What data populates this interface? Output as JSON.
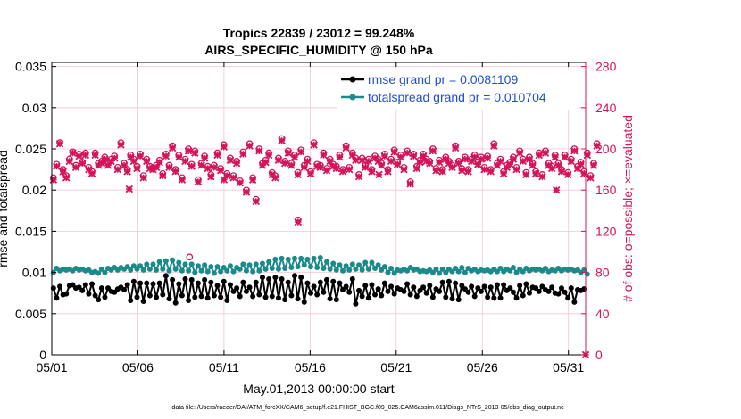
{
  "chart_data": {
    "type": "line",
    "title_line1": "Tropics 22839 / 23012 = 99.248%",
    "title_line2": "AIRS_SPECIFIC_HUMIDITY @ 150 hPa",
    "xlabel": "May.01,2013 00:00:00 start",
    "ylabel_left": "rmse and totalspread",
    "ylabel_right": "# of obs: o=possible; ×=evaluated",
    "ylim_left": [
      0,
      0.0355
    ],
    "ylim_right": [
      0,
      284
    ],
    "xlim": [
      0,
      31
    ],
    "x_ticks": [
      0,
      5,
      10,
      15,
      20,
      25,
      30
    ],
    "x_tick_labels": [
      "05/01",
      "05/06",
      "05/11",
      "05/16",
      "05/21",
      "05/26",
      "05/31"
    ],
    "y_ticks_left": [
      0,
      0.005,
      0.01,
      0.015,
      0.02,
      0.025,
      0.03,
      0.035
    ],
    "y_tick_labels_left": [
      "0",
      "0.005",
      "0.01",
      "0.015",
      "0.02",
      "0.025",
      "0.03",
      "0.035"
    ],
    "y_ticks_right": [
      0,
      40,
      80,
      120,
      160,
      200,
      240,
      280
    ],
    "y_tick_labels_right": [
      "0",
      "40",
      "80",
      "120",
      "160",
      "200",
      "240",
      "280"
    ],
    "colors": {
      "rmse": "#000000",
      "totalspread": "#1b8a8a",
      "obs": "#d4145a",
      "legend_text": "#1f4fd6",
      "grid": "#f3c6d6"
    },
    "legend": [
      {
        "label": "rmse grand pr = 0.0081109",
        "series": "rmse"
      },
      {
        "label": "totalspread grand pr = 0.010704",
        "series": "totalspread"
      }
    ],
    "series": [
      {
        "name": "rmse",
        "axis": "left",
        "values": [
          0.0081,
          0.0069,
          0.0083,
          0.0073,
          0.0074,
          0.0084,
          0.0085,
          0.0081,
          0.0082,
          0.0078,
          0.0085,
          0.0074,
          0.0086,
          0.0072,
          0.0067,
          0.0081,
          0.007,
          0.0081,
          0.0077,
          0.0076,
          0.008,
          0.0082,
          0.0079,
          0.0085,
          0.0066,
          0.0089,
          0.007,
          0.0087,
          0.0065,
          0.0087,
          0.0072,
          0.0086,
          0.007,
          0.0087,
          0.0073,
          0.0096,
          0.0068,
          0.0091,
          0.0063,
          0.0086,
          0.0072,
          0.0092,
          0.0066,
          0.0091,
          0.007,
          0.0087,
          0.0071,
          0.0091,
          0.0069,
          0.0088,
          0.0072,
          0.0084,
          0.007,
          0.0089,
          0.0066,
          0.0085,
          0.0077,
          0.0081,
          0.0071,
          0.0088,
          0.0077,
          0.0082,
          0.0071,
          0.0088,
          0.0073,
          0.0094,
          0.007,
          0.0092,
          0.0071,
          0.0094,
          0.0069,
          0.0092,
          0.0067,
          0.0088,
          0.0072,
          0.0096,
          0.0068,
          0.0094,
          0.0064,
          0.0087,
          0.0075,
          0.0083,
          0.0073,
          0.0088,
          0.0076,
          0.0091,
          0.0068,
          0.0089,
          0.0067,
          0.0087,
          0.0079,
          0.0083,
          0.0076,
          0.0092,
          0.0062,
          0.0078,
          0.0071,
          0.0084,
          0.0069,
          0.0085,
          0.0073,
          0.008,
          0.0072,
          0.0087,
          0.0077,
          0.0083,
          0.0074,
          0.0081,
          0.0079,
          0.0077,
          0.0086,
          0.0073,
          0.0082,
          0.0071,
          0.0078,
          0.0082,
          0.0075,
          0.0084,
          0.007,
          0.008,
          0.0077,
          0.0088,
          0.007,
          0.0089,
          0.0068,
          0.0087,
          0.0067,
          0.0084,
          0.008,
          0.0076,
          0.0083,
          0.0071,
          0.0081,
          0.0077,
          0.0083,
          0.007,
          0.0082,
          0.0069,
          0.0085,
          0.0069,
          0.0085,
          0.0078,
          0.0081,
          0.0076,
          0.0069,
          0.0084,
          0.0072,
          0.0086,
          0.0075,
          0.0082,
          0.0081,
          0.0077,
          0.0083,
          0.0079,
          0.0077,
          0.0082,
          0.0075,
          0.0074,
          0.0081,
          0.0076,
          0.0069,
          0.0081,
          0.0064,
          0.0079,
          0.0078,
          0.008
        ]
      },
      {
        "name": "totalspread",
        "axis": "left",
        "values": [
          0.01,
          0.0105,
          0.0102,
          0.0104,
          0.0103,
          0.0104,
          0.0102,
          0.0105,
          0.0103,
          0.0104,
          0.0102,
          0.0103,
          0.01,
          0.0101,
          0.0099,
          0.0104,
          0.01,
          0.0105,
          0.0103,
          0.0106,
          0.0103,
          0.0106,
          0.0104,
          0.0107,
          0.0103,
          0.0108,
          0.0104,
          0.0108,
          0.0103,
          0.011,
          0.0104,
          0.011,
          0.0103,
          0.0113,
          0.0104,
          0.0114,
          0.0102,
          0.0115,
          0.0104,
          0.0112,
          0.0102,
          0.011,
          0.0102,
          0.011,
          0.01,
          0.0108,
          0.0102,
          0.0109,
          0.0101,
          0.0107,
          0.0099,
          0.0107,
          0.0101,
          0.0106,
          0.0102,
          0.0108,
          0.0101,
          0.0106,
          0.0104,
          0.011,
          0.0102,
          0.0109,
          0.0101,
          0.011,
          0.0102,
          0.0111,
          0.0104,
          0.0113,
          0.0105,
          0.0116,
          0.0104,
          0.0117,
          0.0105,
          0.0116,
          0.0106,
          0.0117,
          0.0107,
          0.0117,
          0.0109,
          0.0116,
          0.0107,
          0.0117,
          0.0106,
          0.0118,
          0.0105,
          0.0113,
          0.0104,
          0.0111,
          0.0103,
          0.0109,
          0.0102,
          0.0108,
          0.0103,
          0.011,
          0.0104,
          0.0109,
          0.0103,
          0.0112,
          0.0104,
          0.0112,
          0.0105,
          0.0109,
          0.0103,
          0.0107,
          0.01,
          0.0105,
          0.0099,
          0.0103,
          0.0102,
          0.0104,
          0.0102,
          0.0106,
          0.0103,
          0.0104,
          0.0101,
          0.0102,
          0.0101,
          0.0103,
          0.01,
          0.0104,
          0.0099,
          0.0104,
          0.01,
          0.0104,
          0.0101,
          0.0105,
          0.0101,
          0.0106,
          0.01,
          0.0105,
          0.0102,
          0.0104,
          0.0101,
          0.0103,
          0.0102,
          0.0103,
          0.0101,
          0.0104,
          0.0101,
          0.0105,
          0.0101,
          0.0104,
          0.0102,
          0.0106,
          0.01,
          0.0104,
          0.0101,
          0.0105,
          0.0102,
          0.0104,
          0.0103,
          0.0104,
          0.0102,
          0.0105,
          0.0101,
          0.0103,
          0.0102,
          0.0105,
          0.0102,
          0.0104,
          0.0103,
          0.0104,
          0.0102,
          0.0103,
          0.01,
          0.0103,
          0.0098
        ]
      },
      {
        "name": "obs_possible",
        "axis": "right",
        "marker": "o",
        "values": [
          172,
          185,
          206,
          180,
          174,
          190,
          197,
          184,
          195,
          187,
          196,
          182,
          178,
          196,
          186,
          188,
          192,
          186,
          190,
          193,
          182,
          206,
          186,
          180,
          194,
          190,
          183,
          195,
          174,
          190,
          183,
          182,
          184,
          189,
          176,
          195,
          184,
          203,
          180,
          194,
          172,
          190,
          200,
          185,
          198,
          170,
          186,
          193,
          183,
          175,
          184,
          196,
          181,
          204,
          176,
          191,
          174,
          188,
          169,
          197,
          160,
          205,
          172,
          151,
          200,
          186,
          189,
          196,
          177,
          174,
          191,
          210,
          188,
          198,
          186,
          194,
          177,
          199,
          184,
          190,
          178,
          206,
          185,
          184,
          196,
          181,
          190,
          185,
          183,
          194,
          180,
          203,
          182,
          196,
          191,
          175,
          191,
          184,
          190,
          180,
          193,
          190,
          186,
          195,
          180,
          190,
          199,
          187,
          194,
          182,
          198,
          168,
          195,
          183,
          189,
          195,
          190,
          188,
          200,
          181,
          189,
          180,
          192,
          188,
          184,
          203,
          188,
          181,
          192,
          180,
          190,
          194,
          187,
          192,
          182,
          193,
          180,
          205,
          186,
          190,
          178,
          184,
          187,
          192,
          182,
          198,
          190,
          177,
          192,
          186,
          178,
          196,
          175,
          198,
          186,
          183,
          194,
          186,
          180,
          194,
          177,
          190,
          200,
          183,
          187,
          178,
          196,
          174,
          186,
          205
        ]
      },
      {
        "name": "obs_evaluated",
        "axis": "right",
        "marker": "x",
        "values": [
          170,
          183,
          205,
          178,
          172,
          188,
          196,
          182,
          193,
          186,
          194,
          180,
          176,
          194,
          184,
          186,
          190,
          184,
          188,
          191,
          180,
          204,
          184,
          178,
          192,
          188,
          181,
          193,
          172,
          188,
          181,
          180,
          182,
          187,
          174,
          193,
          182,
          201,
          178,
          192,
          170,
          188,
          198,
          183,
          196,
          168,
          184,
          191,
          181,
          173,
          182,
          194,
          179,
          202,
          174,
          189,
          172,
          186,
          167,
          195,
          158,
          203,
          170,
          149,
          198,
          184,
          187,
          194,
          175,
          172,
          189,
          208,
          186,
          196,
          184,
          192,
          175,
          197,
          182,
          188,
          176,
          204,
          183,
          182,
          194,
          179,
          188,
          183,
          181,
          192,
          178,
          201,
          180,
          194,
          189,
          173,
          189,
          182,
          188,
          178,
          191,
          188,
          184,
          193,
          178,
          188,
          197,
          185,
          192,
          180,
          196,
          166,
          193,
          181,
          187,
          193,
          188,
          186,
          198,
          179,
          187,
          178,
          190,
          186,
          182,
          201,
          186,
          179,
          190,
          178,
          188,
          192,
          185,
          190,
          180,
          191,
          178,
          203,
          184,
          188,
          176,
          182,
          185,
          190,
          180,
          196,
          188,
          175,
          190,
          184,
          176,
          194,
          173,
          196,
          184,
          181,
          192,
          184,
          178,
          192,
          175,
          188,
          198,
          181,
          185,
          176,
          194,
          172,
          184,
          203
        ]
      }
    ],
    "extra_points": [
      {
        "series": "obs_possible",
        "x": 8.0,
        "value": 95
      },
      {
        "series": "obs_possible",
        "x": 14.3,
        "value": 131
      },
      {
        "series": "obs_evaluated",
        "x": 14.3,
        "value": 129
      },
      {
        "series": "obs_evaluated",
        "x": 10.0,
        "value": 170
      },
      {
        "series": "obs_evaluated",
        "x": 4.5,
        "value": 161
      },
      {
        "series": "obs_evaluated",
        "x": 19.0,
        "value": 175
      },
      {
        "series": "obs_evaluated",
        "x": 29.3,
        "value": 160
      },
      {
        "series": "obs_evaluated",
        "x": 31.0,
        "value": 0
      }
    ],
    "footer": "data file: /Users/raeder/DAI/ATM_forcXX/CAM6_setup/f.e21.FHIST_BGC.f09_025.CAM6assim.011/Diags_NTrS_2013-05/obs_diag_output.nc"
  }
}
